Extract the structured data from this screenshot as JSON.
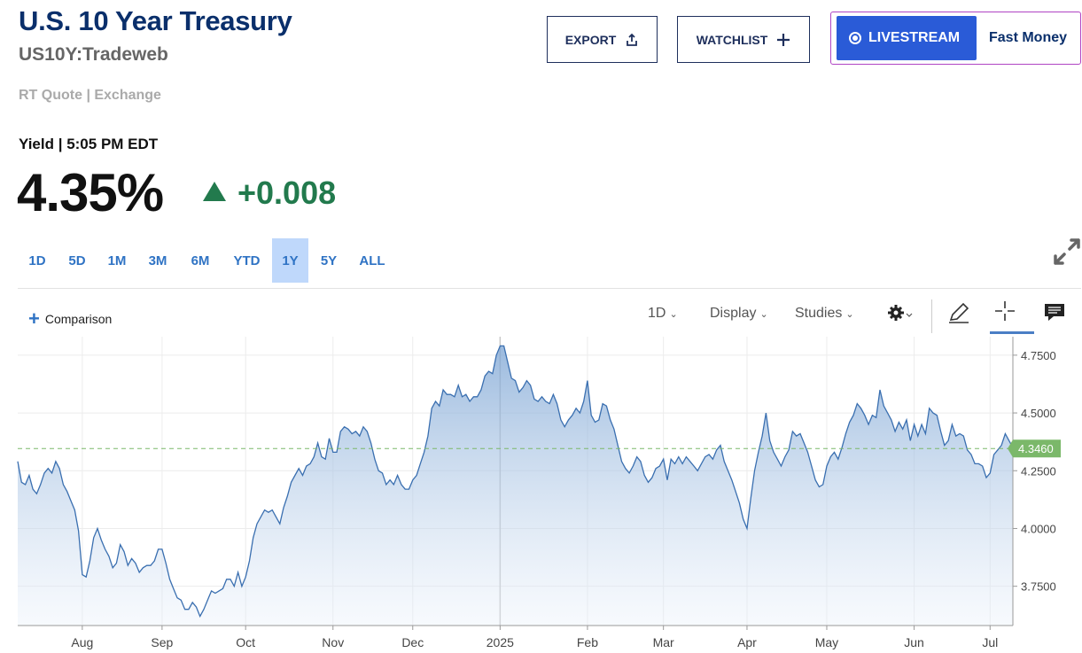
{
  "header": {
    "title": "U.S. 10 Year Treasury",
    "symbol": "US10Y:Tradeweb",
    "quote_source": "RT Quote | Exchange"
  },
  "actions": {
    "export_label": "EXPORT",
    "watchlist_label": "WATCHLIST",
    "livestream_label": "LIVESTREAM",
    "show_label": "Fast Money"
  },
  "quote": {
    "yield_label": "Yield | 5:05 PM EDT",
    "price": "4.35%",
    "change": "+0.008",
    "change_color": "#227a4d"
  },
  "ranges": [
    {
      "label": "1D",
      "active": false
    },
    {
      "label": "5D",
      "active": false
    },
    {
      "label": "1M",
      "active": false
    },
    {
      "label": "3M",
      "active": false
    },
    {
      "label": "6M",
      "active": false
    },
    {
      "label": "YTD",
      "active": false
    },
    {
      "label": "1Y",
      "active": true
    },
    {
      "label": "5Y",
      "active": false
    },
    {
      "label": "ALL",
      "active": false
    }
  ],
  "toolbar": {
    "comparison_label": "Comparison",
    "interval_label": "1D",
    "display_label": "Display",
    "studies_label": "Studies",
    "icons": [
      "gear-icon",
      "pencil-icon",
      "crosshair-icon",
      "comment-icon",
      "expand-icon"
    ]
  },
  "chart_data": {
    "type": "area",
    "x_ticks": [
      "Aug",
      "Sep",
      "Oct",
      "Nov",
      "Dec",
      "2025",
      "Feb",
      "Mar",
      "Apr",
      "May",
      "Jun",
      "Jul"
    ],
    "y_ticks": [
      "4.7500",
      "4.5000",
      "4.2500",
      "4.0000",
      "3.7500"
    ],
    "ylim": [
      3.58,
      4.83
    ],
    "current_value_label": "4.3460",
    "current_value": 4.346,
    "line_color": "#3a6fb0",
    "current_badge_color": "#7bb86a",
    "grid": true,
    "values": [
      4.29,
      4.2,
      4.19,
      4.23,
      4.17,
      4.15,
      4.19,
      4.24,
      4.26,
      4.24,
      4.29,
      4.26,
      4.19,
      4.16,
      4.12,
      4.08,
      3.99,
      3.8,
      3.79,
      3.86,
      3.96,
      4.0,
      3.95,
      3.91,
      3.88,
      3.83,
      3.85,
      3.93,
      3.9,
      3.84,
      3.87,
      3.85,
      3.81,
      3.83,
      3.84,
      3.84,
      3.86,
      3.91,
      3.91,
      3.85,
      3.78,
      3.74,
      3.7,
      3.69,
      3.65,
      3.65,
      3.68,
      3.66,
      3.62,
      3.65,
      3.69,
      3.73,
      3.72,
      3.73,
      3.74,
      3.78,
      3.78,
      3.75,
      3.81,
      3.75,
      3.79,
      3.86,
      3.96,
      4.02,
      4.05,
      4.08,
      4.07,
      4.08,
      4.05,
      4.02,
      4.09,
      4.14,
      4.2,
      4.23,
      4.26,
      4.23,
      4.27,
      4.28,
      4.31,
      4.37,
      4.31,
      4.3,
      4.39,
      4.33,
      4.33,
      4.42,
      4.44,
      4.43,
      4.41,
      4.42,
      4.4,
      4.44,
      4.42,
      4.37,
      4.3,
      4.25,
      4.24,
      4.19,
      4.21,
      4.19,
      4.23,
      4.19,
      4.17,
      4.17,
      4.21,
      4.23,
      4.28,
      4.33,
      4.4,
      4.52,
      4.55,
      4.53,
      4.6,
      4.58,
      4.58,
      4.57,
      4.62,
      4.57,
      4.58,
      4.55,
      4.57,
      4.57,
      4.6,
      4.66,
      4.68,
      4.67,
      4.75,
      4.79,
      4.79,
      4.72,
      4.65,
      4.64,
      4.59,
      4.61,
      4.64,
      4.62,
      4.56,
      4.55,
      4.57,
      4.55,
      4.54,
      4.58,
      4.54,
      4.47,
      4.44,
      4.47,
      4.49,
      4.52,
      4.5,
      4.55,
      4.64,
      4.49,
      4.46,
      4.47,
      4.54,
      4.53,
      4.47,
      4.43,
      4.36,
      4.29,
      4.26,
      4.24,
      4.27,
      4.31,
      4.29,
      4.23,
      4.2,
      4.22,
      4.26,
      4.27,
      4.3,
      4.21,
      4.3,
      4.28,
      4.31,
      4.28,
      4.31,
      4.29,
      4.27,
      4.25,
      4.28,
      4.31,
      4.32,
      4.3,
      4.34,
      4.36,
      4.29,
      4.25,
      4.21,
      4.16,
      4.11,
      4.04,
      4.0,
      4.13,
      4.25,
      4.33,
      4.4,
      4.5,
      4.38,
      4.33,
      4.3,
      4.27,
      4.31,
      4.34,
      4.42,
      4.4,
      4.41,
      4.37,
      4.33,
      4.27,
      4.21,
      4.18,
      4.19,
      4.27,
      4.31,
      4.33,
      4.3,
      4.35,
      4.41,
      4.46,
      4.49,
      4.54,
      4.52,
      4.49,
      4.45,
      4.49,
      4.48,
      4.6,
      4.53,
      4.5,
      4.47,
      4.42,
      4.46,
      4.43,
      4.47,
      4.38,
      4.45,
      4.4,
      4.45,
      4.41,
      4.52,
      4.5,
      4.49,
      4.42,
      4.36,
      4.38,
      4.45,
      4.4,
      4.41,
      4.4,
      4.34,
      4.32,
      4.28,
      4.28,
      4.27,
      4.22,
      4.24,
      4.32,
      4.34,
      4.36,
      4.41,
      4.38,
      4.35
    ]
  }
}
